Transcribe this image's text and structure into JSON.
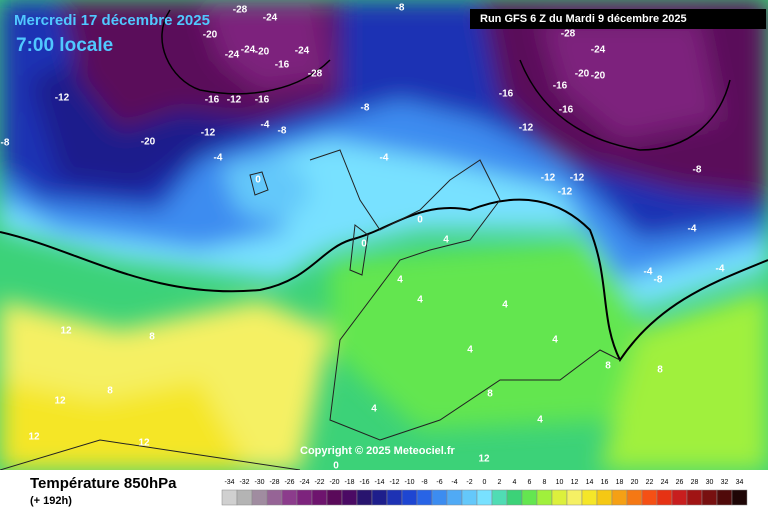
{
  "header": {
    "valid_date": "Mercredi 17 décembre 2025",
    "local_time": "7:00 locale",
    "run": "Run GFS 6 Z du Mardi 9 décembre 2025"
  },
  "copyright": "Copyright © 2025 Meteociel.fr",
  "footer": {
    "title": "Température 850hPa",
    "lead": "(+ 192h)"
  },
  "legend": {
    "values": [
      -34,
      -32,
      -30,
      -28,
      -26,
      -24,
      -22,
      -20,
      -18,
      -16,
      -14,
      -12,
      -10,
      -8,
      -6,
      -4,
      -2,
      0,
      2,
      4,
      6,
      8,
      10,
      12,
      14,
      16,
      18,
      20,
      22,
      24,
      26,
      28,
      30,
      32,
      34
    ],
    "colors": [
      "#d0d0d0",
      "#b4b4b4",
      "#a08ca0",
      "#966496",
      "#8c3c8c",
      "#7d237d",
      "#6e146e",
      "#5a0a5a",
      "#4b0a64",
      "#28146e",
      "#1e1e8c",
      "#1e32b4",
      "#1e46d2",
      "#2864e6",
      "#3c8cf0",
      "#50aaf5",
      "#64c8fa",
      "#78e1ff",
      "#50dcb4",
      "#3cd278",
      "#64e650",
      "#a0f03c",
      "#dcf03c",
      "#f5f064",
      "#f5e628",
      "#f5c814",
      "#f5a014",
      "#f57814",
      "#f55014",
      "#e63214",
      "#c81e1e",
      "#a01414",
      "#781010",
      "#500a0a",
      "#1e0505"
    ]
  },
  "map_labels": [
    -28,
    -24,
    -20,
    -24,
    -24,
    -20,
    -16,
    -28,
    -24,
    -8,
    -12,
    -20,
    -16,
    -12,
    -16,
    -12,
    -4,
    -8,
    -4,
    -8,
    -4,
    0,
    -12,
    -16,
    -20,
    -16,
    -28,
    -24,
    -20,
    -16,
    -12,
    -8,
    -12,
    -4,
    0,
    0,
    4,
    4,
    4,
    4,
    -4,
    -4,
    -8,
    8,
    12,
    8,
    12,
    12,
    12,
    4,
    4,
    8,
    4,
    8,
    0,
    12,
    4,
    8,
    -8,
    -12
  ]
}
